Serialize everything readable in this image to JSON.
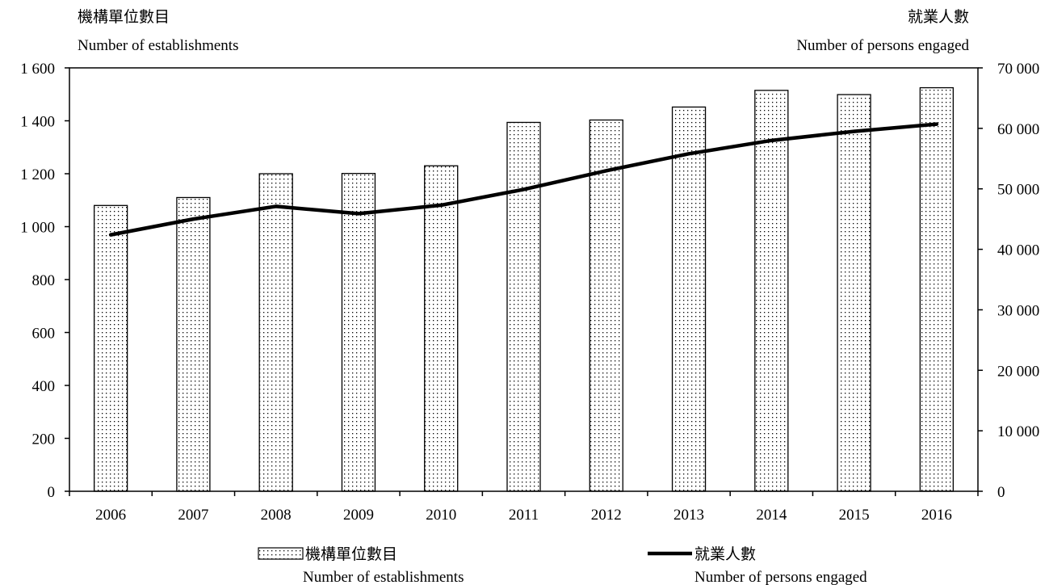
{
  "chart_data": {
    "type": "bar",
    "categories": [
      "2006",
      "2007",
      "2008",
      "2009",
      "2010",
      "2011",
      "2012",
      "2013",
      "2014",
      "2015",
      "2016"
    ],
    "series": [
      {
        "name": "機構單位數目 Number of establishments",
        "name_zh": "機構單位數目",
        "name_en": "Number of establishments",
        "type": "bar",
        "axis": "left",
        "values": [
          1080,
          1110,
          1200,
          1201,
          1230,
          1394,
          1403,
          1452,
          1515,
          1499,
          1525
        ]
      },
      {
        "name": "就業人數 Number of persons engaged",
        "name_zh": "就業人數",
        "name_en": "Number of persons engaged",
        "type": "line",
        "axis": "right",
        "values": [
          42400,
          45000,
          47100,
          45900,
          47300,
          49900,
          53000,
          55800,
          58000,
          59500,
          60700
        ]
      }
    ],
    "left_axis": {
      "title_zh": "機構單位數目",
      "title_en": "Number of establishments",
      "ylim": [
        0,
        1600
      ],
      "ticks": [
        0,
        200,
        400,
        600,
        800,
        1000,
        1200,
        1400,
        1600
      ],
      "tick_labels": [
        "0",
        "200",
        "400",
        "600",
        "800",
        "1 000",
        "1 200",
        "1 400",
        "1 600"
      ]
    },
    "right_axis": {
      "title_zh": "就業人數",
      "title_en": "Number of persons engaged",
      "ylim": [
        0,
        70000
      ],
      "ticks": [
        0,
        10000,
        20000,
        30000,
        40000,
        50000,
        60000,
        70000
      ],
      "tick_labels": [
        "0",
        "10 000",
        "20 000",
        "30 000",
        "40 000",
        "50 000",
        "60 000",
        "70 000"
      ]
    },
    "grid": false,
    "legend_position": "bottom",
    "colors": {
      "bar_fill": "#ffffff",
      "bar_dots": "#000000",
      "bar_stroke": "#000000",
      "line": "#000000",
      "axis": "#000000"
    }
  }
}
